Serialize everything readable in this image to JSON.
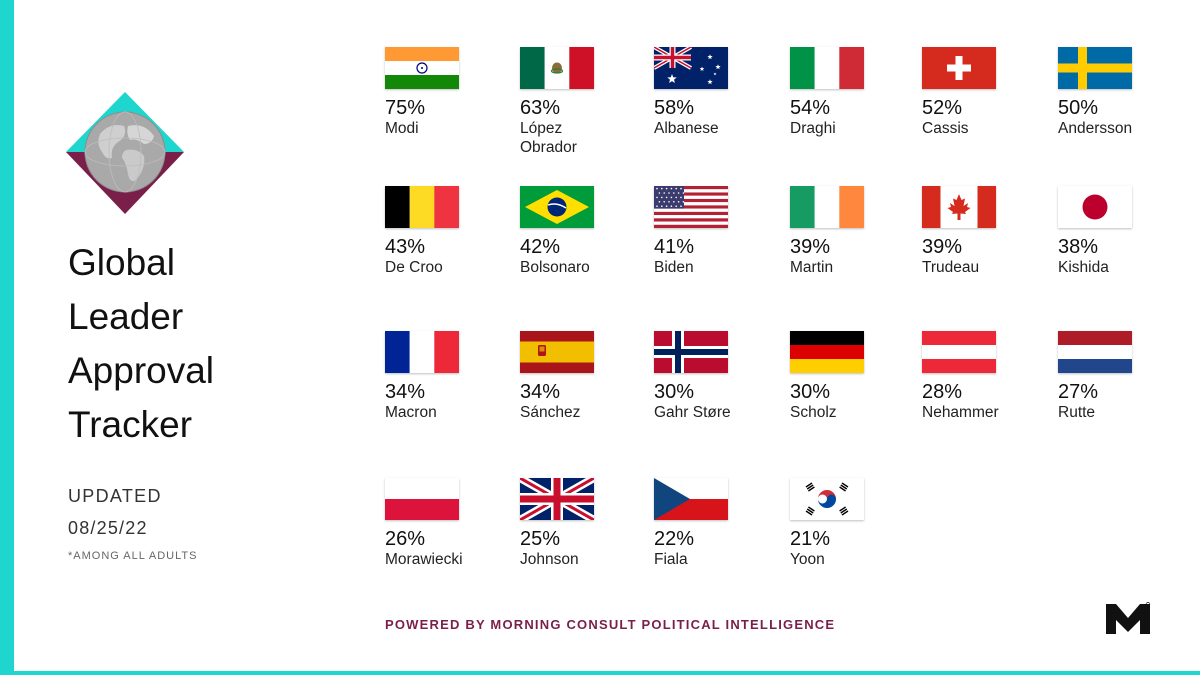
{
  "title_lines": [
    "Global",
    "Leader",
    "Approval",
    "Tracker"
  ],
  "updated_label": "UPDATED",
  "updated_date": "08/25/22",
  "footnote": "*AMONG ALL ADULTS",
  "powered_by": "POWERED BY MORNING CONSULT POLITICAL INTELLIGENCE",
  "colors": {
    "accent": "#1fd6cf",
    "brand": "#7a1f4a"
  },
  "chart_data": {
    "type": "table",
    "unit": "%",
    "leaders": [
      {
        "name": "Modi",
        "approval": 75,
        "pct": "75%",
        "flag": "india-flag"
      },
      {
        "name": "López Obrador",
        "approval": 63,
        "pct": "63%",
        "flag": "mexico-flag"
      },
      {
        "name": "Albanese",
        "approval": 58,
        "pct": "58%",
        "flag": "australia-flag"
      },
      {
        "name": "Draghi",
        "approval": 54,
        "pct": "54%",
        "flag": "italy-flag"
      },
      {
        "name": "Cassis",
        "approval": 52,
        "pct": "52%",
        "flag": "switzerland-flag"
      },
      {
        "name": "Andersson",
        "approval": 50,
        "pct": "50%",
        "flag": "sweden-flag"
      },
      {
        "name": "De Croo",
        "approval": 43,
        "pct": "43%",
        "flag": "belgium-flag"
      },
      {
        "name": "Bolsonaro",
        "approval": 42,
        "pct": "42%",
        "flag": "brazil-flag"
      },
      {
        "name": "Biden",
        "approval": 41,
        "pct": "41%",
        "flag": "usa-flag"
      },
      {
        "name": "Martin",
        "approval": 39,
        "pct": "39%",
        "flag": "ireland-flag"
      },
      {
        "name": "Trudeau",
        "approval": 39,
        "pct": "39%",
        "flag": "canada-flag"
      },
      {
        "name": "Kishida",
        "approval": 38,
        "pct": "38%",
        "flag": "japan-flag"
      },
      {
        "name": "Macron",
        "approval": 34,
        "pct": "34%",
        "flag": "france-flag"
      },
      {
        "name": "Sánchez",
        "approval": 34,
        "pct": "34%",
        "flag": "spain-flag"
      },
      {
        "name": "Gahr Støre",
        "approval": 30,
        "pct": "30%",
        "flag": "norway-flag"
      },
      {
        "name": "Scholz",
        "approval": 30,
        "pct": "30%",
        "flag": "germany-flag"
      },
      {
        "name": "Nehammer",
        "approval": 28,
        "pct": "28%",
        "flag": "austria-flag"
      },
      {
        "name": "Rutte",
        "approval": 27,
        "pct": "27%",
        "flag": "netherlands-flag"
      },
      {
        "name": "Morawiecki",
        "approval": 26,
        "pct": "26%",
        "flag": "poland-flag"
      },
      {
        "name": "Johnson",
        "approval": 25,
        "pct": "25%",
        "flag": "uk-flag"
      },
      {
        "name": "Fiala",
        "approval": 22,
        "pct": "22%",
        "flag": "czech-flag"
      },
      {
        "name": "Yoon",
        "approval": 21,
        "pct": "21%",
        "flag": "south-korea-flag"
      }
    ]
  }
}
